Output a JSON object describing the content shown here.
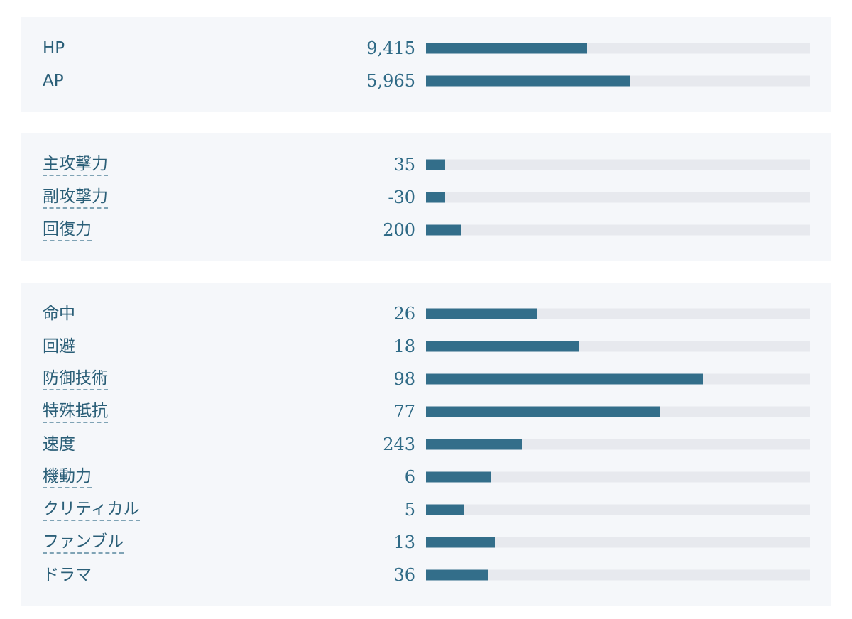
{
  "groups": [
    {
      "rows": [
        {
          "label": "HP",
          "value": "9,415",
          "fill": 42,
          "underline": false
        },
        {
          "label": "AP",
          "value": "5,965",
          "fill": 53,
          "underline": false
        }
      ]
    },
    {
      "rows": [
        {
          "label": "主攻撃力",
          "value": "35",
          "fill": 5,
          "underline": true
        },
        {
          "label": "副攻撃力",
          "value": "-30",
          "fill": 5,
          "underline": true
        },
        {
          "label": "回復力",
          "value": "200",
          "fill": 9,
          "underline": true
        }
      ]
    },
    {
      "rows": [
        {
          "label": "命中",
          "value": "26",
          "fill": 29,
          "underline": false
        },
        {
          "label": "回避",
          "value": "18",
          "fill": 40,
          "underline": false
        },
        {
          "label": "防御技術",
          "value": "98",
          "fill": 72,
          "underline": true
        },
        {
          "label": "特殊抵抗",
          "value": "77",
          "fill": 61,
          "underline": true
        },
        {
          "label": "速度",
          "value": "243",
          "fill": 25,
          "underline": false
        },
        {
          "label": "機動力",
          "value": "6",
          "fill": 17,
          "underline": true
        },
        {
          "label": "クリティカル",
          "value": "5",
          "fill": 10,
          "underline": true
        },
        {
          "label": "ファンブル",
          "value": "13",
          "fill": 18,
          "underline": true
        },
        {
          "label": "ドラマ",
          "value": "36",
          "fill": 16,
          "underline": false
        }
      ]
    }
  ]
}
